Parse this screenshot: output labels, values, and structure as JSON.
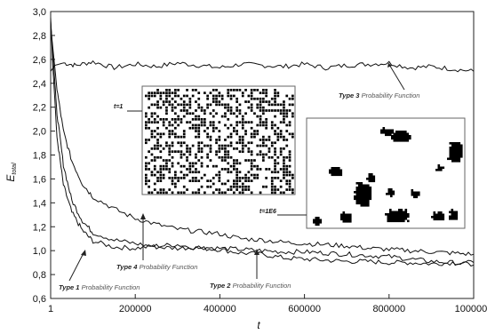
{
  "chart_data": {
    "type": "line",
    "xlabel": "t",
    "ylabel": "E",
    "ylabel_subscript": "total",
    "xlim": [
      1,
      1000000
    ],
    "ylim": [
      0.6,
      3.0
    ],
    "x_ticks": [
      "1",
      "200000",
      "400000",
      "600000",
      "800000",
      "1000000"
    ],
    "x_tick_values": [
      1,
      200000,
      400000,
      600000,
      800000,
      1000000
    ],
    "y_ticks": [
      "0,6",
      "0,8",
      "1,0",
      "1,2",
      "1,4",
      "1,6",
      "1,8",
      "2,0",
      "2,2",
      "2,4",
      "2,6",
      "2,8",
      "3,0"
    ],
    "y_tick_values": [
      0.6,
      0.8,
      1.0,
      1.2,
      1.4,
      1.6,
      1.8,
      2.0,
      2.2,
      2.4,
      2.6,
      2.8,
      3.0
    ],
    "series": [
      {
        "name": "Type 3",
        "x": [
          1,
          10000,
          30000,
          60000,
          100000,
          150000,
          200000,
          250000,
          300000,
          350000,
          400000,
          450000,
          500000,
          550000,
          600000,
          650000,
          700000,
          750000,
          800000,
          850000,
          900000,
          950000,
          1000000
        ],
        "y": [
          2.5,
          2.55,
          2.57,
          2.55,
          2.58,
          2.53,
          2.56,
          2.54,
          2.57,
          2.55,
          2.53,
          2.56,
          2.55,
          2.54,
          2.56,
          2.53,
          2.55,
          2.56,
          2.57,
          2.53,
          2.54,
          2.52,
          2.5
        ]
      },
      {
        "name": "Type 1",
        "x": [
          1,
          5000,
          15000,
          30000,
          50000,
          75000,
          100000,
          150000,
          200000,
          250000,
          300000,
          350000,
          400000,
          450000,
          500000,
          550000,
          600000,
          650000,
          700000,
          750000,
          800000,
          850000,
          900000,
          950000,
          1000000
        ],
        "y": [
          2.95,
          2.55,
          1.95,
          1.55,
          1.32,
          1.17,
          1.08,
          1.03,
          1.02,
          1.04,
          1.05,
          1.02,
          1.01,
          0.98,
          0.97,
          0.94,
          0.93,
          0.92,
          0.91,
          0.91,
          0.9,
          0.9,
          0.89,
          0.9,
          0.9
        ]
      },
      {
        "name": "Type 2",
        "x": [
          1,
          5000,
          15000,
          30000,
          50000,
          75000,
          100000,
          150000,
          200000,
          250000,
          300000,
          350000,
          400000,
          450000,
          500000,
          550000,
          600000,
          650000,
          700000,
          750000,
          800000,
          850000,
          900000,
          950000,
          1000000
        ],
        "y": [
          2.92,
          2.65,
          2.15,
          1.72,
          1.42,
          1.25,
          1.15,
          1.09,
          1.06,
          1.03,
          1.02,
          1.03,
          1.02,
          1.01,
          1.0,
          0.99,
          0.99,
          0.98,
          0.97,
          0.96,
          0.95,
          0.93,
          0.91,
          0.9,
          0.88
        ]
      },
      {
        "name": "Type 4",
        "x": [
          1,
          5000,
          15000,
          30000,
          50000,
          75000,
          100000,
          150000,
          200000,
          250000,
          300000,
          350000,
          400000,
          450000,
          500000,
          550000,
          600000,
          650000,
          700000,
          750000,
          800000,
          850000,
          900000,
          950000,
          1000000
        ],
        "y": [
          2.88,
          2.7,
          2.35,
          2.0,
          1.75,
          1.56,
          1.45,
          1.35,
          1.27,
          1.22,
          1.18,
          1.16,
          1.14,
          1.1,
          1.09,
          1.07,
          1.06,
          1.05,
          1.04,
          1.02,
          1.01,
          1.0,
          0.99,
          0.98,
          0.97
        ]
      }
    ],
    "annotations": [
      {
        "type_label": "Type 3",
        "suffix": "Probability Function"
      },
      {
        "type_label": "Type 4",
        "suffix": "Probability Function"
      },
      {
        "type_label": "Type 1",
        "suffix": "Probability Function"
      },
      {
        "type_label": "Type 2",
        "suffix": "Probability Function"
      }
    ],
    "insets": [
      {
        "label": "t=1"
      },
      {
        "label": "t=1E6"
      }
    ],
    "grid": false
  }
}
